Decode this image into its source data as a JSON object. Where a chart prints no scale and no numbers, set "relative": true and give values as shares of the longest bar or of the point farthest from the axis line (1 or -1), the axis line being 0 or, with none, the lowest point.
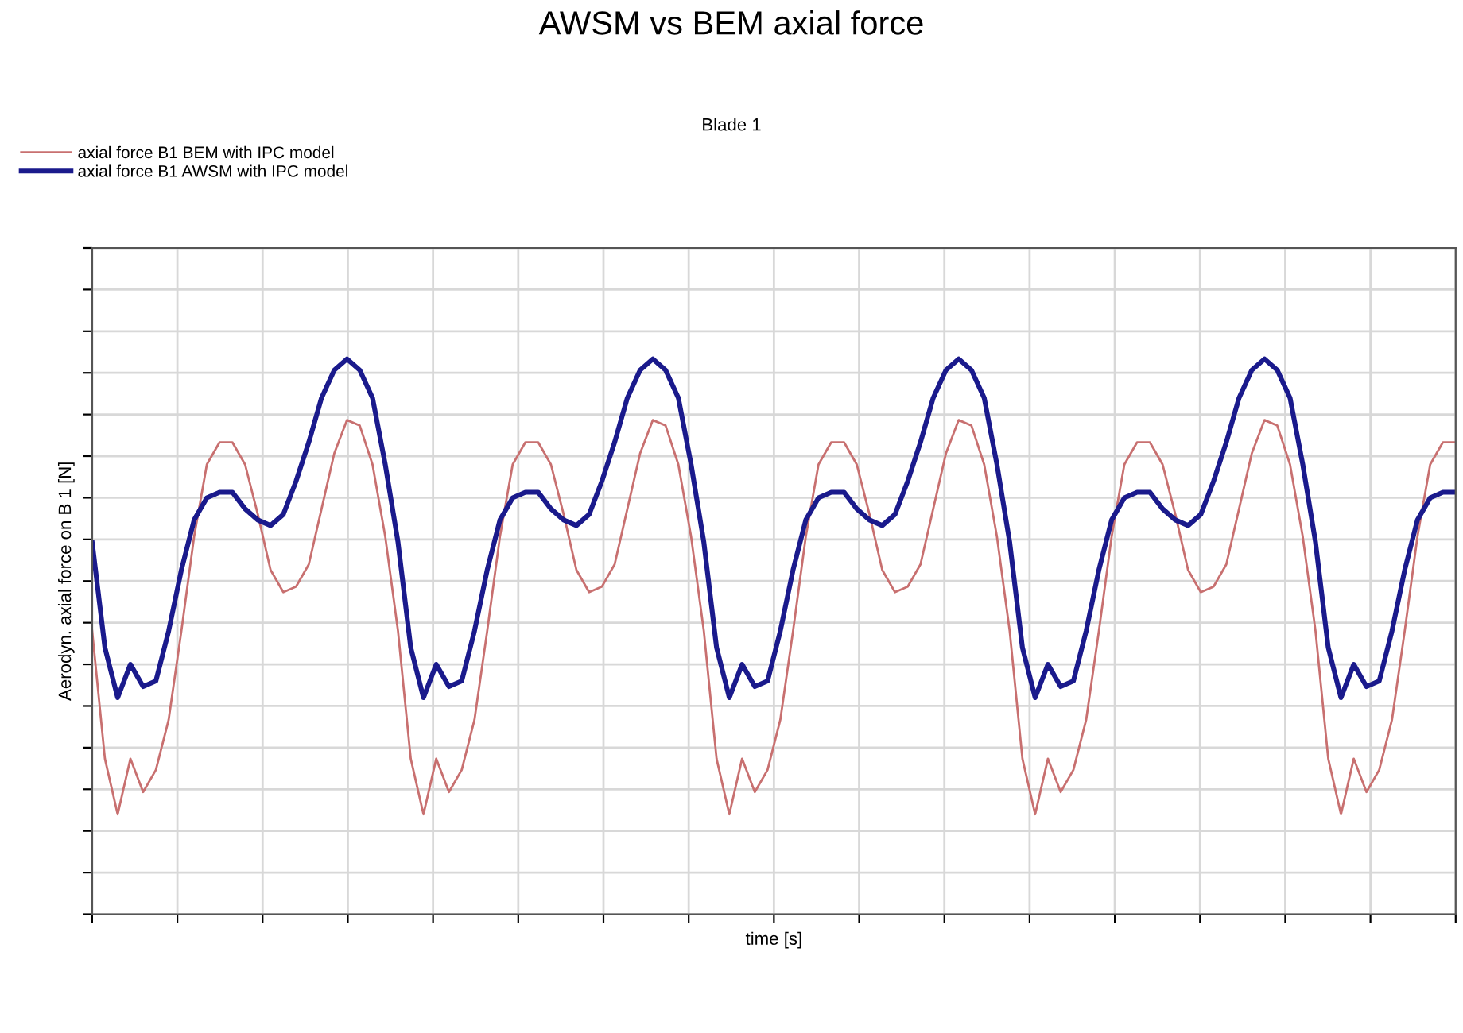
{
  "chart_data": {
    "type": "line",
    "title": "AWSM vs BEM axial force",
    "subtitle": "Blade 1",
    "xlabel": "time [s]",
    "ylabel": "Aerodyn. axial force on B 1 [N]",
    "relative": true,
    "grid": true,
    "legend": "top left",
    "tick_labels": false,
    "marker": "none",
    "line_style": "solid",
    "categories": [
      null,
      null,
      null,
      null,
      null,
      null,
      null,
      null,
      null,
      null,
      null,
      null,
      null,
      null,
      null,
      null,
      null,
      null,
      null,
      null,
      null,
      null,
      null,
      null,
      null,
      null,
      null,
      null,
      null,
      null,
      null,
      null,
      null,
      null,
      null,
      null,
      null,
      null,
      null,
      null,
      null,
      null,
      null,
      null,
      null,
      null,
      null,
      null,
      null,
      null,
      null,
      null,
      null,
      null,
      null,
      null,
      null,
      null,
      null,
      null,
      null,
      null,
      null,
      null,
      null,
      null,
      null,
      null,
      null,
      null,
      null,
      null,
      null,
      null,
      null,
      null,
      null,
      null,
      null,
      null,
      null,
      null,
      null,
      null,
      null,
      null,
      null,
      null,
      null,
      null,
      null,
      null,
      null,
      null,
      null,
      null,
      null,
      null,
      null,
      null,
      null,
      null,
      null,
      null,
      null,
      null,
      null,
      null
    ],
    "series": [
      {
        "name": "axial force B1 BEM with IPC model",
        "color": "#c87070",
        "values": [
          0.51,
          0.28,
          0.18,
          0.28,
          0.22,
          0.26,
          0.35,
          0.51,
          0.68,
          0.81,
          0.85,
          0.85,
          0.81,
          0.72,
          0.62,
          0.58,
          0.59,
          0.63,
          0.73,
          0.83,
          0.89,
          0.88,
          0.81,
          0.68,
          0.51,
          0.28,
          0.18,
          0.28,
          0.22,
          0.26,
          0.35,
          0.51,
          0.68,
          0.81,
          0.85,
          0.85,
          0.81,
          0.72,
          0.62,
          0.58,
          0.59,
          0.63,
          0.73,
          0.83,
          0.89,
          0.88,
          0.81,
          0.68,
          0.51,
          0.28,
          0.18,
          0.28,
          0.22,
          0.26,
          0.35,
          0.51,
          0.68,
          0.81,
          0.85,
          0.85,
          0.81,
          0.72,
          0.62,
          0.58,
          0.59,
          0.63,
          0.73,
          0.83,
          0.89,
          0.88,
          0.81,
          0.68,
          0.51,
          0.28,
          0.18,
          0.28,
          0.22,
          0.26,
          0.35,
          0.51,
          0.68,
          0.81,
          0.85,
          0.85,
          0.81,
          0.72,
          0.62,
          0.58,
          0.59,
          0.63,
          0.73,
          0.83,
          0.89,
          0.88,
          0.81,
          0.68,
          0.51,
          0.28,
          0.18,
          0.28,
          0.22,
          0.26,
          0.35,
          0.51,
          0.68,
          0.81,
          0.85,
          0.85
        ]
      },
      {
        "name": "axial force B1 AWSM with IPC model",
        "color": "#1a1a8c",
        "values": [
          0.67,
          0.48,
          0.39,
          0.45,
          0.41,
          0.42,
          0.51,
          0.62,
          0.71,
          0.75,
          0.76,
          0.76,
          0.73,
          0.71,
          0.7,
          0.72,
          0.78,
          0.85,
          0.93,
          0.98,
          1.0,
          0.98,
          0.93,
          0.81,
          0.67,
          0.48,
          0.39,
          0.45,
          0.41,
          0.42,
          0.51,
          0.62,
          0.71,
          0.75,
          0.76,
          0.76,
          0.73,
          0.71,
          0.7,
          0.72,
          0.78,
          0.85,
          0.93,
          0.98,
          1.0,
          0.98,
          0.93,
          0.81,
          0.67,
          0.48,
          0.39,
          0.45,
          0.41,
          0.42,
          0.51,
          0.62,
          0.71,
          0.75,
          0.76,
          0.76,
          0.73,
          0.71,
          0.7,
          0.72,
          0.78,
          0.85,
          0.93,
          0.98,
          1.0,
          0.98,
          0.93,
          0.81,
          0.67,
          0.48,
          0.39,
          0.45,
          0.41,
          0.42,
          0.51,
          0.62,
          0.71,
          0.75,
          0.76,
          0.76,
          0.73,
          0.71,
          0.7,
          0.72,
          0.78,
          0.85,
          0.93,
          0.98,
          1.0,
          0.98,
          0.93,
          0.81,
          0.67,
          0.48,
          0.39,
          0.45,
          0.41,
          0.42,
          0.51,
          0.62,
          0.71,
          0.75,
          0.76,
          0.76
        ]
      }
    ]
  }
}
